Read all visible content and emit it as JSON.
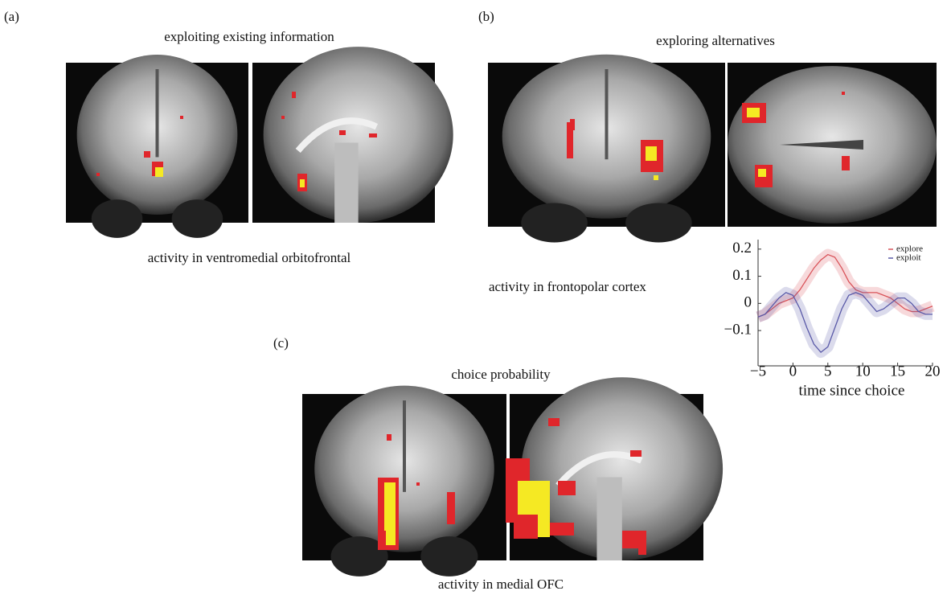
{
  "panels": [
    {
      "label": "(a)",
      "title": "exploiting existing information",
      "caption": "activity in ventromedial orbitofrontal"
    },
    {
      "label": "(b)",
      "title": "exploring alternatives",
      "caption": "activity in frontopolar cortex"
    },
    {
      "label": "(c)",
      "title": "choice probability",
      "caption": "activity in medial OFC"
    }
  ],
  "chart_data": {
    "type": "line",
    "x": [
      -5,
      -4,
      -3,
      -2,
      -1,
      0,
      1,
      2,
      3,
      4,
      5,
      6,
      7,
      8,
      9,
      10,
      11,
      12,
      13,
      14,
      15,
      16,
      17,
      18,
      19,
      20
    ],
    "series": [
      {
        "name": "explore",
        "color": "#d9545a",
        "values": [
          -0.05,
          -0.04,
          -0.02,
          0,
          0.01,
          0.02,
          0.05,
          0.09,
          0.13,
          0.16,
          0.18,
          0.17,
          0.13,
          0.08,
          0.05,
          0.04,
          0.04,
          0.04,
          0.03,
          0.02,
          0,
          -0.02,
          -0.03,
          -0.03,
          -0.02,
          -0.01
        ]
      },
      {
        "name": "exploit",
        "color": "#5a5aa8",
        "values": [
          -0.05,
          -0.04,
          -0.01,
          0.02,
          0.04,
          0.03,
          -0.02,
          -0.09,
          -0.15,
          -0.18,
          -0.16,
          -0.09,
          -0.02,
          0.03,
          0.04,
          0.03,
          0,
          -0.03,
          -0.02,
          0,
          0.02,
          0.02,
          0,
          -0.03,
          -0.04,
          -0.04
        ]
      }
    ],
    "xlabel": "time since choice",
    "xlim": [
      -5,
      20
    ],
    "ylim": [
      -0.23,
      0.235
    ],
    "xticks": [
      {
        "value": -5,
        "label": "−5"
      },
      0,
      5,
      10,
      15,
      20
    ],
    "yticks": [
      0.2,
      0.1,
      0,
      {
        "value": -0.1,
        "label": "−0.1"
      }
    ]
  }
}
